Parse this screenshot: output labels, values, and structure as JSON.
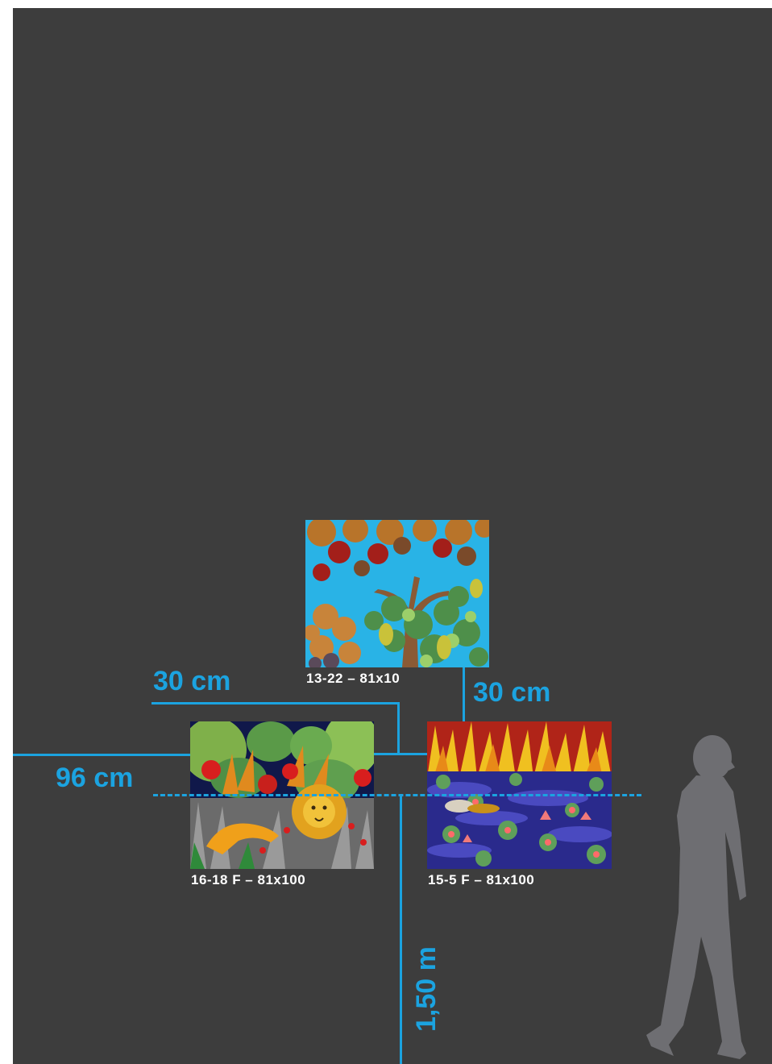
{
  "paintings": {
    "top": {
      "caption": "13-22 – 81x10",
      "subject": "tree with grapes"
    },
    "left": {
      "caption": "16-18 F – 81x100",
      "subject": "jungle with lion"
    },
    "right": {
      "caption": "15-5 F – 81x100",
      "subject": "pond with water lilies"
    }
  },
  "measurements": {
    "spacing_horizontal": "30 cm",
    "spacing_vertical": "30 cm",
    "center_offset": "96 cm",
    "height_from_floor": "1,50 m"
  },
  "colors": {
    "wall": "#3d3d3d",
    "measure_lines": "#1ba3e0",
    "caption_text": "#ffffff",
    "silhouette": "#6e6e72"
  },
  "icons": {
    "person": "person-silhouette-icon"
  }
}
